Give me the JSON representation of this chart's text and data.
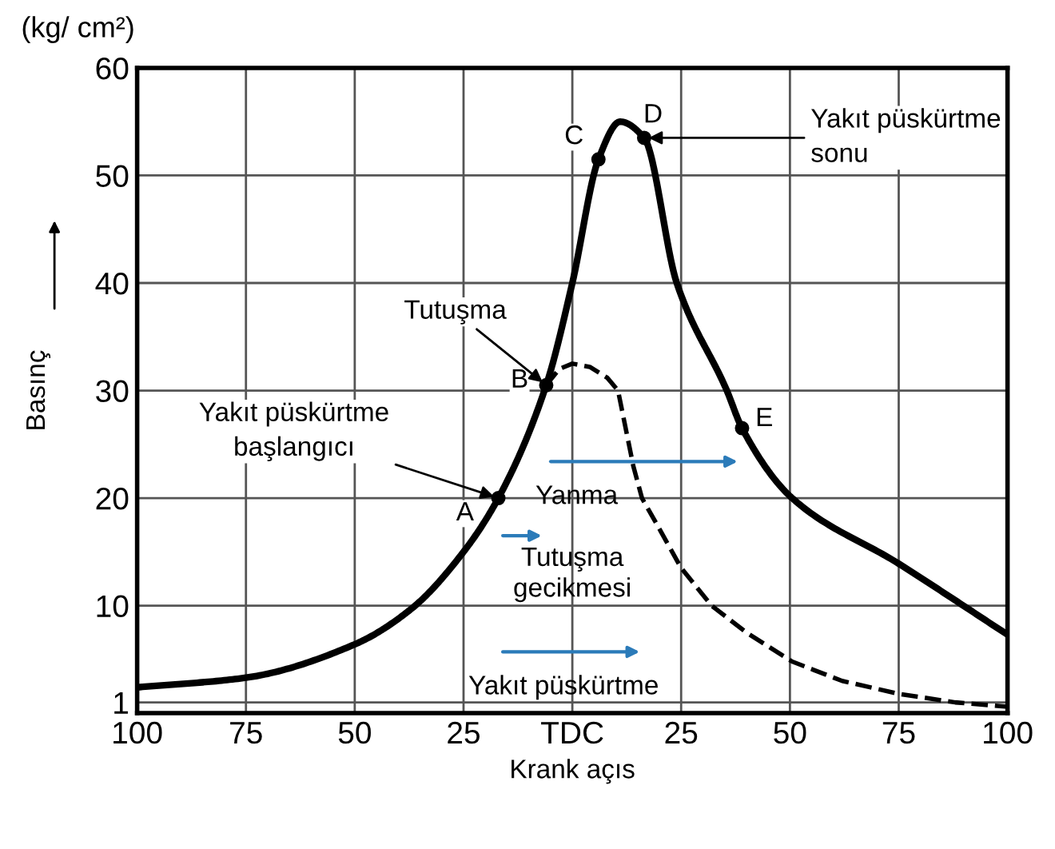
{
  "chart_data": {
    "type": "line",
    "xlabel": "Krank açıs",
    "ylabel": "Basınç",
    "xlim": [
      -100,
      100
    ],
    "ylim": [
      0,
      60
    ],
    "xticks": [
      {
        "value": -100,
        "label": "100"
      },
      {
        "value": -75,
        "label": "75"
      },
      {
        "value": -50,
        "label": "50"
      },
      {
        "value": -25,
        "label": "25"
      },
      {
        "value": 0,
        "label": "TDC"
      },
      {
        "value": 25,
        "label": "25"
      },
      {
        "value": 50,
        "label": "50"
      },
      {
        "value": 75,
        "label": "75"
      },
      {
        "value": 100,
        "label": "100"
      }
    ],
    "yticks": [
      1,
      10,
      20,
      30,
      40,
      50,
      60
    ],
    "grid": true,
    "series": [
      {
        "color": "#000000",
        "line_style": "solid",
        "marker": "none",
        "x": [
          -100,
          -75,
          -50,
          -37,
          -25,
          -17,
          -6,
          0,
          6,
          11,
          16.5,
          24,
          35.5,
          39,
          50.5,
          75,
          100
        ],
        "values": [
          2.4,
          3.3,
          6.4,
          9.7,
          15,
          20,
          30.5,
          40,
          51.5,
          55,
          53.5,
          40,
          30,
          26.5,
          20,
          13.9,
          7.3
        ]
      },
      {
        "type": "line",
        "color": "#000000",
        "line_style": "dashed",
        "marker": "none",
        "x": [
          -6,
          -3,
          0,
          4,
          8,
          10.5,
          12,
          14,
          16,
          19.5,
          25,
          32,
          40,
          50.5,
          62,
          75,
          88,
          100
        ],
        "values": [
          30.5,
          32,
          32.5,
          32.2,
          31.2,
          30,
          27,
          23,
          20,
          17.5,
          13.5,
          10,
          7.5,
          4.8,
          3,
          1.8,
          1,
          0.6
        ]
      },
      {
        "type": "scatter",
        "color": "#000000",
        "marker": "circle",
        "x": [
          -17,
          -6,
          6,
          16.5,
          39
        ],
        "values": [
          20,
          30.5,
          51.5,
          53.5,
          26.5
        ]
      }
    ],
    "annotations": [
      {
        "text": "A",
        "x": -17,
        "y": 20
      },
      {
        "text": "B",
        "x": -6,
        "y": 30.5
      },
      {
        "text": "C",
        "x": 6,
        "y": 51.5
      },
      {
        "text": "D",
        "x": 16.5,
        "y": 53.5
      },
      {
        "text": "E",
        "x": 39,
        "y": 26.5
      },
      {
        "text": "Tutuşma",
        "x": -6,
        "y": 30.5
      },
      {
        "text": "Yakıt püskürtme\nbaşlangıcı",
        "x": -17,
        "y": 20
      },
      {
        "text": "Yakıt püskürtme\nsonu",
        "x": 16.5,
        "y": 53.5
      },
      "Yanma",
      "Tutuşma\ngecikmesi",
      "Yakıt püskürtme",
      "(kg/ cm²)"
    ]
  }
}
